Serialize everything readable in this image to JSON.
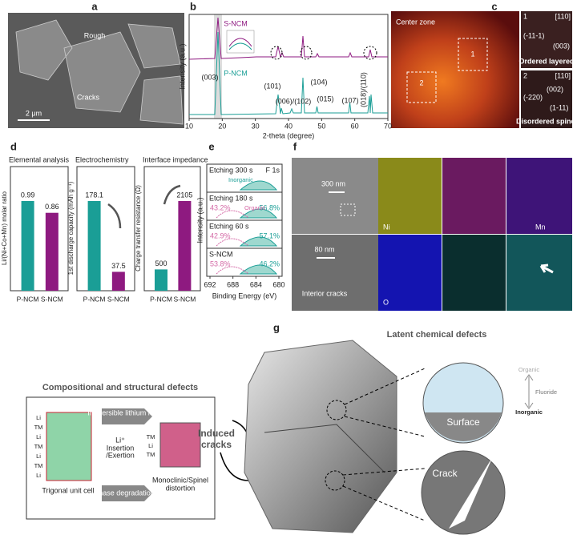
{
  "panels": {
    "a": {
      "label": "a",
      "rough": "Rough",
      "cracks": "Cracks",
      "scale": "2 μm"
    },
    "b": {
      "label": "b",
      "y_label": "Intensity (a.u.)",
      "x_label": "2-theta (degree)",
      "xlim": [
        10,
        70
      ],
      "x_ticks": [
        10,
        20,
        30,
        40,
        50,
        60,
        70
      ],
      "series": [
        "S-NCM",
        "P-NCM"
      ],
      "peaks": [
        "(003)",
        "(101)",
        "(006)/(102)",
        "(104)",
        "(015)",
        "(107)",
        "(018)/(110)"
      ]
    },
    "c": {
      "label": "c",
      "zone": "Center zone",
      "box1": "1",
      "box2": "2",
      "inset1": {
        "num": "1",
        "axis": "[110]",
        "spot1": "(-11-1)",
        "spot2": "(003)",
        "name": "Ordered layered"
      },
      "inset2": {
        "num": "2",
        "axis": "[110]",
        "spot1": "(-220)",
        "spot2": "(002)",
        "spot3": "(1-11)",
        "name": "Disordered spinel"
      }
    },
    "d": {
      "label": "d",
      "categories": [
        "P-NCM",
        "S-NCM"
      ],
      "colors": [
        "#1a9e96",
        "#8e1a80"
      ],
      "groups": [
        {
          "title": "Elemental analysis",
          "y_label": "Li/(Ni+Co+Mn) molar ratio",
          "values": [
            0.99,
            0.86
          ]
        },
        {
          "title": "Electrochemistry",
          "y_label": "1st discharge capacity (mAh g⁻¹)",
          "values": [
            178.1,
            37.5
          ]
        },
        {
          "title": "Interface impedance",
          "y_label": "Charge transfer resistance (Ω)",
          "values": [
            500,
            2105
          ]
        }
      ]
    },
    "e": {
      "label": "e",
      "element": "F 1s",
      "y_label": "Intensity (a.u.)",
      "x_label": "Binding Energy (eV)",
      "x_ticks": [
        692,
        688,
        684,
        680
      ],
      "spectra": [
        {
          "name": "Etching 300 s",
          "note": "Inorganic"
        },
        {
          "name": "Etching 180 s",
          "left": "43.2%",
          "note": "Organic",
          "right": "56.8%"
        },
        {
          "name": "Etching 60 s",
          "left": "42.9%",
          "right": "57.1%"
        },
        {
          "name": "S-NCM",
          "left": "53.8%",
          "right": "46.2%"
        }
      ]
    },
    "f": {
      "label": "f",
      "scale1": "300 nm",
      "scale2": "80 nm",
      "cracks": "Interior cracks",
      "ni": "Ni",
      "mn": "Mn",
      "o": "O"
    },
    "g": {
      "label": "g",
      "box_title": "Compositional and structural defects",
      "latent": "Latent chemical defects",
      "layers1": [
        "Li",
        "TM",
        "Li",
        "TM",
        "Li",
        "TM",
        "Li"
      ],
      "trigonal": "Trigonal unit cell",
      "loss": "Irreversible lithium loss",
      "li": "Li⁺",
      "insertion": "Insertion",
      "exertion": "/Exertion",
      "layers2": [
        "TM",
        "Li",
        "TM"
      ],
      "phase": "Phase degradation",
      "mono1": "Monoclinic/Spinel",
      "mono2": "distortion",
      "induced1": "Induced",
      "induced2": "cracks",
      "organic": "Organic",
      "fluoride": "Fluoride",
      "inorganic": "Inorganic",
      "surface": "Surface",
      "crack": "Crack"
    }
  }
}
